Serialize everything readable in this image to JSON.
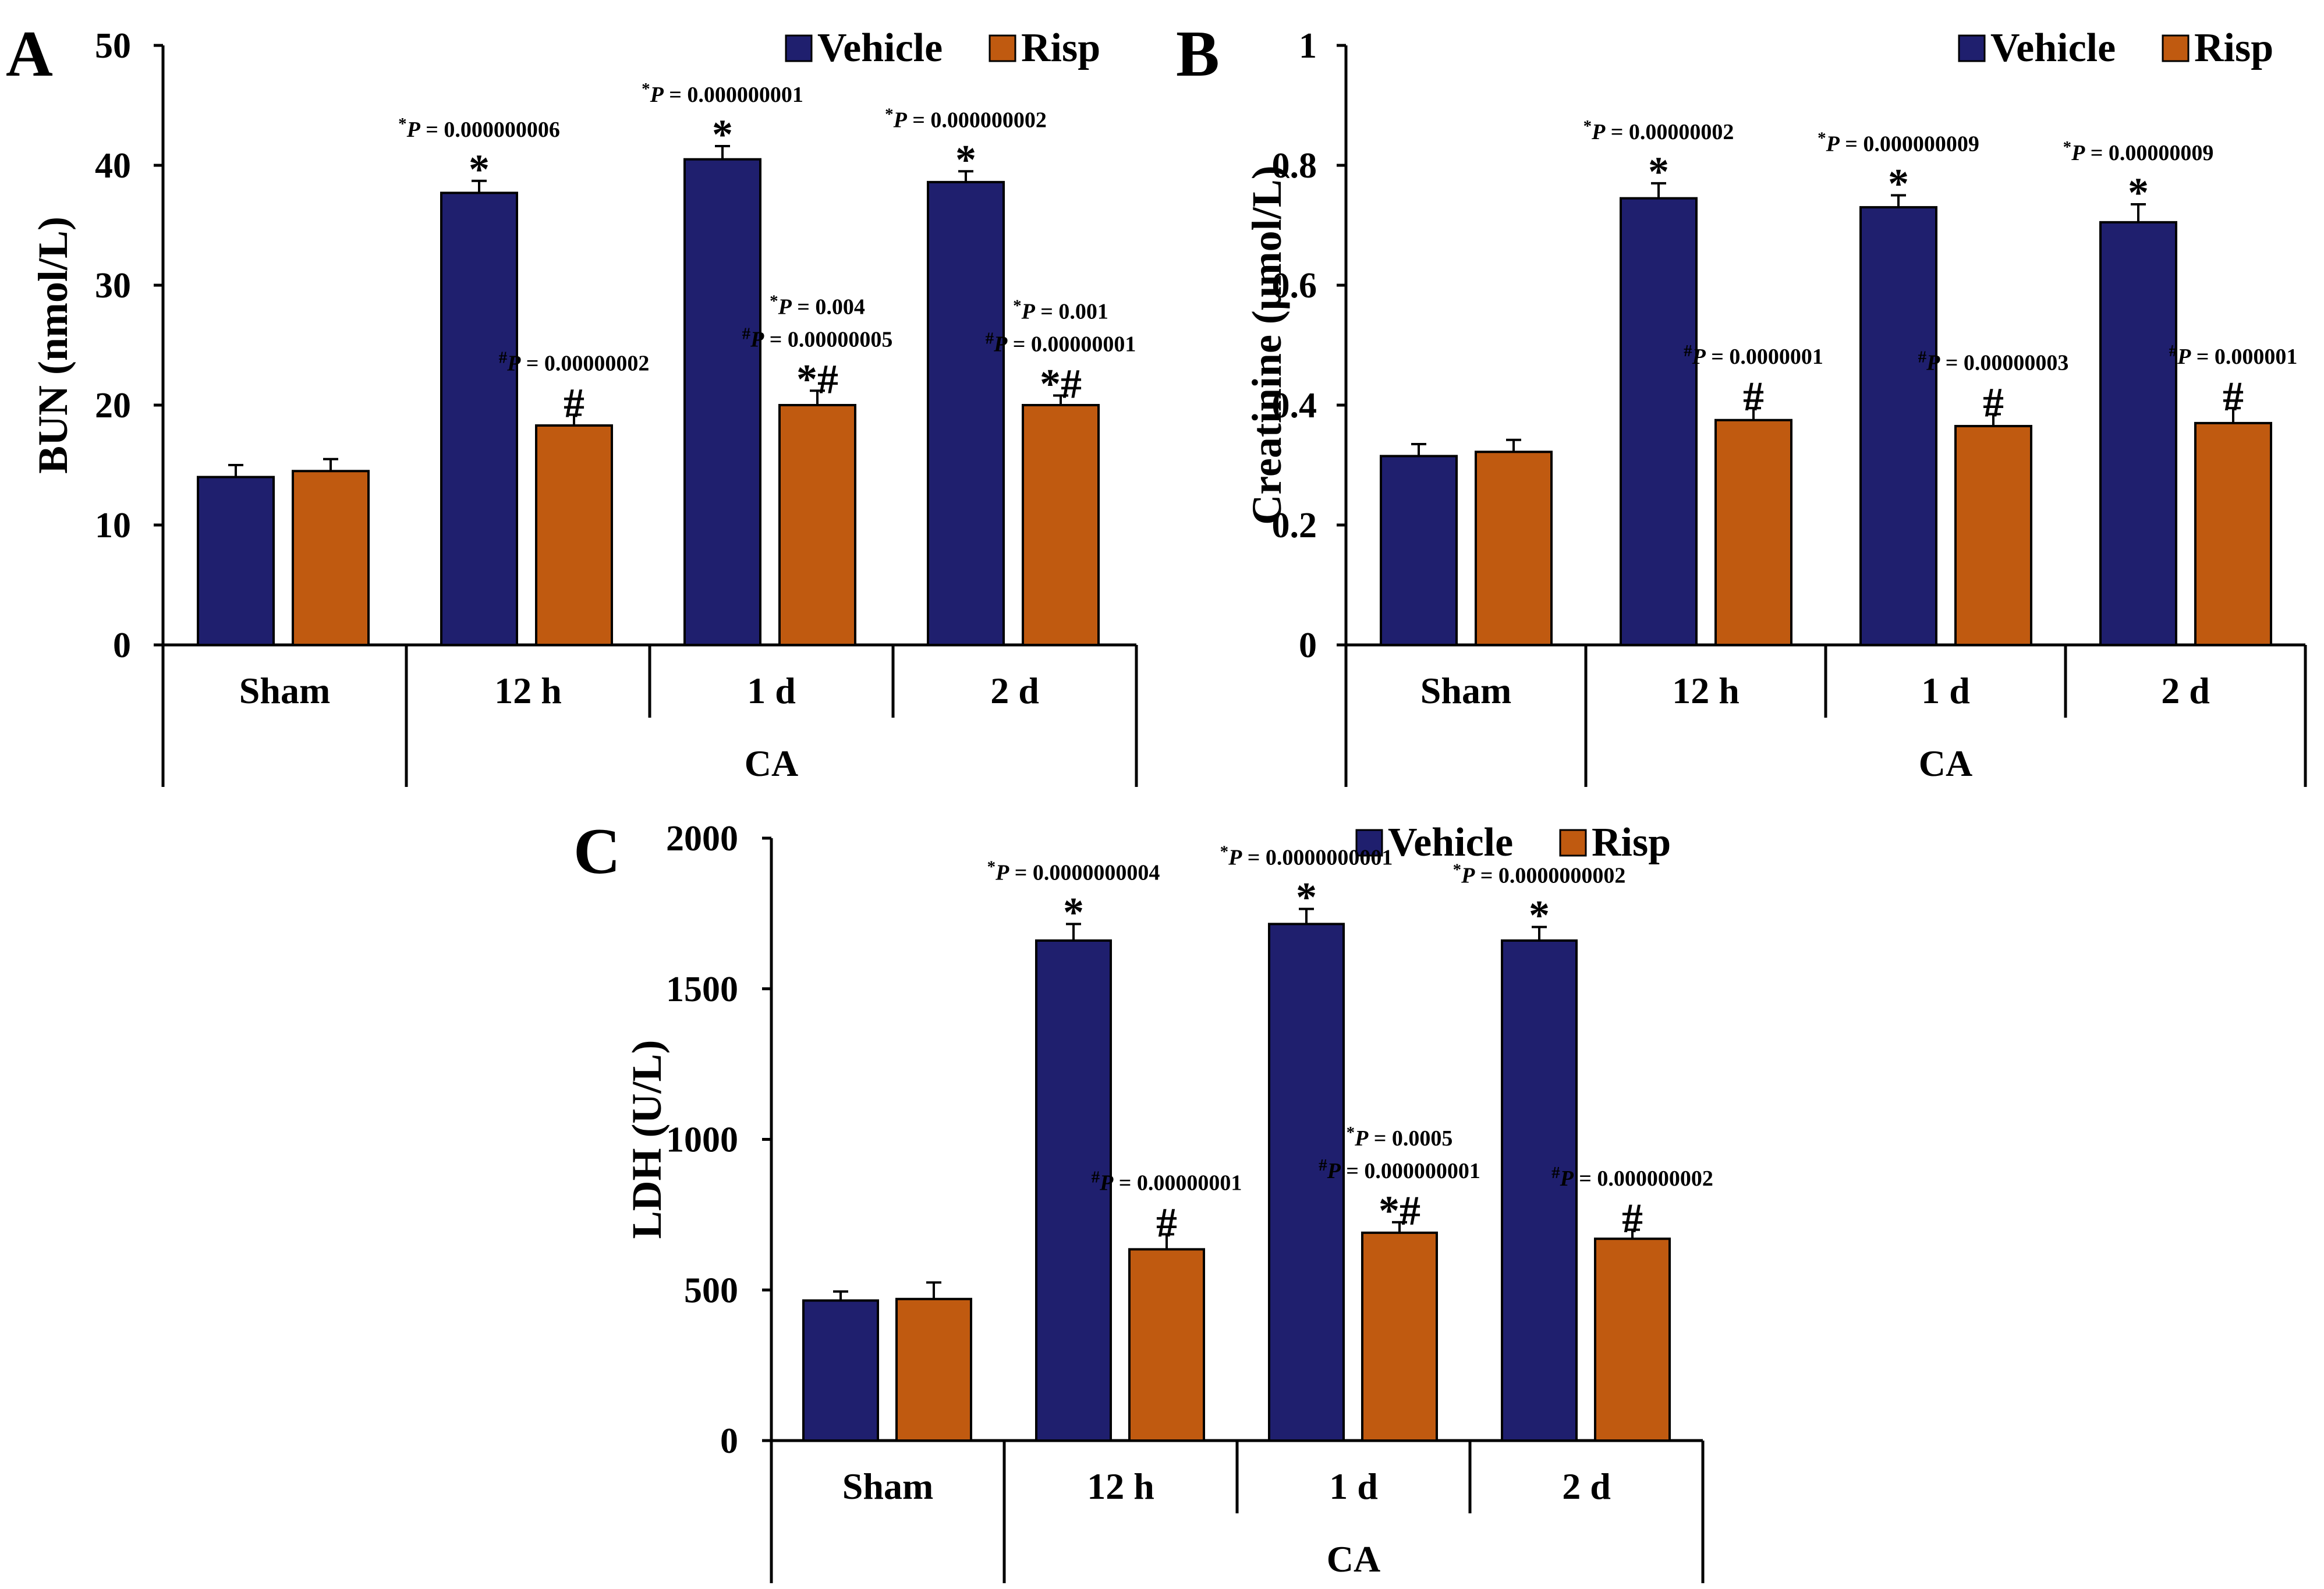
{
  "colors": {
    "vehicle": "#1f1f6e",
    "risp": "#c05a10",
    "axis": "#000000"
  },
  "chart_data": [
    {
      "panel": "A",
      "type": "bar",
      "ylabel": "BUN (nmol/L)",
      "ylim": [
        0,
        50
      ],
      "yticks": [
        "0",
        "10",
        "20",
        "30",
        "40",
        "50"
      ],
      "categories": [
        "Sham",
        "12 h",
        "1 d",
        "2 d"
      ],
      "group_label": "CA",
      "legend": [
        "Vehicle",
        "Risp"
      ],
      "series": [
        {
          "name": "Vehicle",
          "values": [
            14.0,
            37.7,
            40.5,
            38.6
          ],
          "errors": [
            1.0,
            1.0,
            1.1,
            0.9
          ]
        },
        {
          "name": "Risp",
          "values": [
            14.5,
            18.3,
            20.0,
            20.0
          ],
          "errors": [
            1.0,
            0.9,
            1.2,
            0.8
          ]
        }
      ],
      "annotations": [
        {
          "series": 0,
          "category": 1,
          "symbol": "*",
          "lines": [
            "*P = 0.000000006"
          ]
        },
        {
          "series": 0,
          "category": 2,
          "symbol": "*",
          "lines": [
            "*P = 0.000000001"
          ]
        },
        {
          "series": 0,
          "category": 3,
          "symbol": "*",
          "lines": [
            "*P = 0.000000002"
          ]
        },
        {
          "series": 1,
          "category": 1,
          "symbol": "#",
          "lines": [
            "#P = 0.00000002"
          ]
        },
        {
          "series": 1,
          "category": 2,
          "symbol": "*#",
          "lines": [
            "*P = 0.004",
            "#P = 0.00000005"
          ]
        },
        {
          "series": 1,
          "category": 3,
          "symbol": "*#",
          "lines": [
            "*P = 0.001",
            "#P = 0.00000001"
          ]
        }
      ]
    },
    {
      "panel": "B",
      "type": "bar",
      "ylabel": "Creatinine (μmol/L)",
      "ylim": [
        0,
        1
      ],
      "yticks": [
        "0",
        "0.2",
        "0.4",
        "0.6",
        "0.8",
        "1"
      ],
      "categories": [
        "Sham",
        "12 h",
        "1 d",
        "2 d"
      ],
      "group_label": "CA",
      "legend": [
        "Vehicle",
        "Risp"
      ],
      "series": [
        {
          "name": "Vehicle",
          "values": [
            0.315,
            0.745,
            0.73,
            0.705
          ],
          "errors": [
            0.02,
            0.025,
            0.02,
            0.03
          ]
        },
        {
          "name": "Risp",
          "values": [
            0.322,
            0.375,
            0.365,
            0.37
          ],
          "errors": [
            0.02,
            0.02,
            0.02,
            0.025
          ]
        }
      ],
      "annotations": [
        {
          "series": 0,
          "category": 1,
          "symbol": "*",
          "lines": [
            "*P = 0.00000002"
          ]
        },
        {
          "series": 0,
          "category": 2,
          "symbol": "*",
          "lines": [
            "*P = 0.000000009"
          ]
        },
        {
          "series": 0,
          "category": 3,
          "symbol": "*",
          "lines": [
            "*P = 0.00000009"
          ]
        },
        {
          "series": 1,
          "category": 1,
          "symbol": "#",
          "lines": [
            "#P = 0.0000001"
          ]
        },
        {
          "series": 1,
          "category": 2,
          "symbol": "#",
          "lines": [
            "#P = 0.00000003"
          ]
        },
        {
          "series": 1,
          "category": 3,
          "symbol": "#",
          "lines": [
            "#P = 0.000001"
          ]
        }
      ]
    },
    {
      "panel": "C",
      "type": "bar",
      "ylabel": "LDH (U/L)",
      "ylim": [
        0,
        2000
      ],
      "yticks": [
        "0",
        "500",
        "1000",
        "1500",
        "2000"
      ],
      "categories": [
        "Sham",
        "12 h",
        "1 d",
        "2 d"
      ],
      "group_label": "CA",
      "legend": [
        "Vehicle",
        "Risp"
      ],
      "series": [
        {
          "name": "Vehicle",
          "values": [
            465,
            1660,
            1715,
            1660
          ],
          "errors": [
            30,
            55,
            50,
            45
          ]
        },
        {
          "name": "Risp",
          "values": [
            470,
            635,
            690,
            670
          ],
          "errors": [
            55,
            50,
            35,
            30
          ]
        }
      ],
      "annotations": [
        {
          "series": 0,
          "category": 1,
          "symbol": "*",
          "lines": [
            "*P = 0.0000000004"
          ]
        },
        {
          "series": 0,
          "category": 2,
          "symbol": "*",
          "lines": [
            "*P = 0.0000000001"
          ]
        },
        {
          "series": 0,
          "category": 3,
          "symbol": "*",
          "lines": [
            "*P = 0.0000000002"
          ]
        },
        {
          "series": 1,
          "category": 1,
          "symbol": "#",
          "lines": [
            "#P = 0.00000001"
          ]
        },
        {
          "series": 1,
          "category": 2,
          "symbol": "*#",
          "lines": [
            "*P = 0.0005",
            "#P = 0.000000001"
          ]
        },
        {
          "series": 1,
          "category": 3,
          "symbol": "#",
          "lines": [
            "#P = 0.000000002"
          ]
        }
      ]
    }
  ]
}
